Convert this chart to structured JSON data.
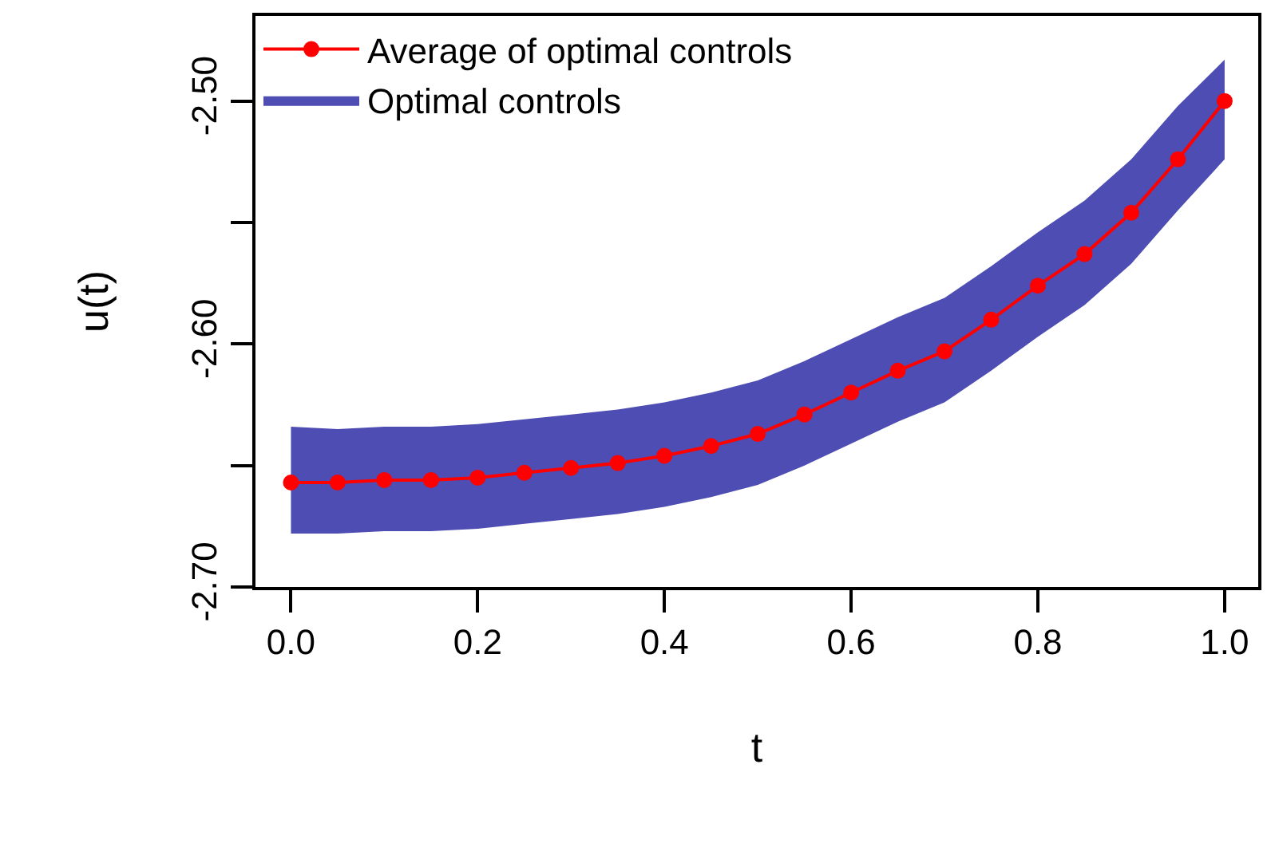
{
  "chart_data": {
    "type": "line",
    "xlabel": "t",
    "ylabel": "u(t)",
    "x": [
      0,
      0.05,
      0.1,
      0.15,
      0.2,
      0.25,
      0.3,
      0.35,
      0.4,
      0.45,
      0.5,
      0.55,
      0.6,
      0.65,
      0.7,
      0.75,
      0.8,
      0.85,
      0.9,
      0.95,
      1.0
    ],
    "series": [
      {
        "name": "Average of optimal controls",
        "color": "#ff0000",
        "marker": "circle",
        "values": [
          -2.657,
          -2.657,
          -2.656,
          -2.656,
          -2.655,
          -2.653,
          -2.651,
          -2.649,
          -2.646,
          -2.642,
          -2.637,
          -2.629,
          -2.62,
          -2.611,
          -2.603,
          -2.59,
          -2.576,
          -2.563,
          -2.546,
          -2.524,
          -2.5
        ]
      },
      {
        "name": "Optimal controls",
        "color": "#4d4db3",
        "marker": "none",
        "values": [
          null,
          null,
          null,
          null,
          null,
          null,
          null,
          null,
          null,
          null,
          null,
          null,
          null,
          null,
          null,
          null,
          null,
          null,
          null,
          null,
          null
        ],
        "lower": [
          -2.678,
          -2.678,
          -2.677,
          -2.677,
          -2.676,
          -2.674,
          -2.672,
          -2.67,
          -2.667,
          -2.663,
          -2.658,
          -2.65,
          -2.641,
          -2.632,
          -2.624,
          -2.611,
          -2.597,
          -2.584,
          -2.567,
          -2.545,
          -2.524
        ],
        "upper": [
          -2.634,
          -2.635,
          -2.634,
          -2.634,
          -2.633,
          -2.631,
          -2.629,
          -2.627,
          -2.624,
          -2.62,
          -2.615,
          -2.607,
          -2.598,
          -2.589,
          -2.581,
          -2.568,
          -2.554,
          -2.541,
          -2.524,
          -2.502,
          -2.483
        ]
      }
    ],
    "xlim": [
      -0.038,
      1.036
    ],
    "xticks": [
      {
        "value": 0,
        "label": "0.0"
      },
      0.2,
      0.4,
      0.6,
      0.8,
      {
        "value": 1,
        "label": "1.0"
      }
    ],
    "ylim": [
      -2.7,
      -2.465
    ],
    "yticks": [
      {
        "value": -2.7,
        "label": "-2.70"
      },
      {
        "value": -2.65,
        "label": null
      },
      {
        "value": -2.6,
        "label": "-2.60"
      },
      {
        "value": -2.55,
        "label": null
      },
      {
        "value": -2.5,
        "label": "-2.50"
      }
    ],
    "grid": false,
    "legend": "top left"
  }
}
